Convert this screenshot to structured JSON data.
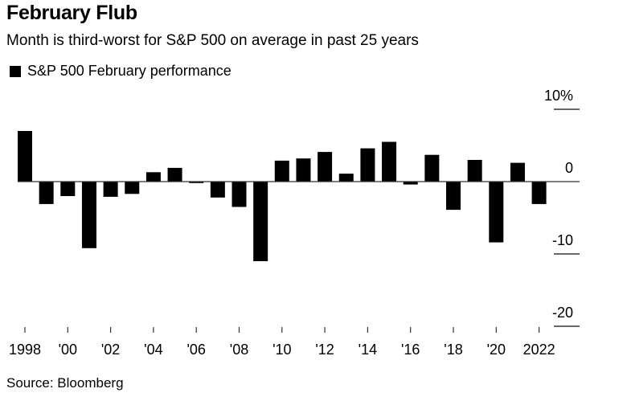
{
  "header": {
    "title": "February Flub",
    "subtitle": "Month is third-worst for S&P 500 on average in past 25 years"
  },
  "legend": {
    "label": "S&P 500 February performance"
  },
  "footer": {
    "source": "Source: Bloomberg"
  },
  "chart_data": {
    "type": "bar",
    "title": "February Flub",
    "subtitle": "Month is third-worst for S&P 500 on average in past 25 years",
    "xlabel": "",
    "ylabel": "",
    "legend": [
      {
        "name": "S&P 500 February performance",
        "color": "#000000"
      }
    ],
    "legend_position": "top-left",
    "grid": false,
    "y_axis_side": "right",
    "ylim": [
      -20,
      10
    ],
    "yticks": [
      10,
      0,
      -10,
      -20
    ],
    "ytick_labels": [
      "10%",
      "0",
      "-10",
      "-20"
    ],
    "categories": [
      "1998",
      "1999",
      "2000",
      "2001",
      "2002",
      "2003",
      "2004",
      "2005",
      "2006",
      "2007",
      "2008",
      "2009",
      "2010",
      "2011",
      "2012",
      "2013",
      "2014",
      "2015",
      "2016",
      "2017",
      "2018",
      "2019",
      "2020",
      "2021",
      "2022"
    ],
    "xtick_labels": [
      {
        "year": "1998",
        "label": "1998"
      },
      {
        "year": "2000",
        "label": "'00"
      },
      {
        "year": "2002",
        "label": "'02"
      },
      {
        "year": "2004",
        "label": "'04"
      },
      {
        "year": "2006",
        "label": "'06"
      },
      {
        "year": "2008",
        "label": "'08"
      },
      {
        "year": "2010",
        "label": "'10"
      },
      {
        "year": "2012",
        "label": "'12"
      },
      {
        "year": "2014",
        "label": "'14"
      },
      {
        "year": "2016",
        "label": "'16"
      },
      {
        "year": "2018",
        "label": "'18"
      },
      {
        "year": "2020",
        "label": "'20"
      },
      {
        "year": "2022",
        "label": "2022"
      }
    ],
    "series": [
      {
        "name": "S&P 500 February performance",
        "color": "#000000",
        "values": [
          7.0,
          -3.1,
          -2.0,
          -9.2,
          -2.1,
          -1.7,
          1.3,
          1.9,
          -0.2,
          -2.2,
          -3.5,
          -11.0,
          2.9,
          3.2,
          4.1,
          1.1,
          4.6,
          5.5,
          -0.4,
          3.7,
          -3.9,
          3.0,
          -8.4,
          2.6,
          -3.1
        ]
      }
    ],
    "source": "Source: Bloomberg"
  }
}
